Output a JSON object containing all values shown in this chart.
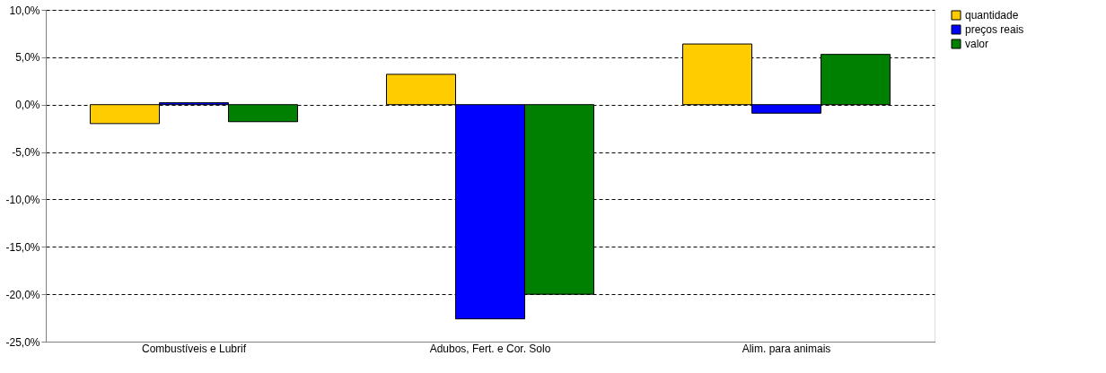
{
  "chart_data": {
    "type": "bar",
    "categories": [
      "Combustíveis e Lubrif",
      "Adubos, Fert. e Cor. Solo",
      "Alim. para animais"
    ],
    "series": [
      {
        "name": "quantidade",
        "color": "#ffcc00",
        "values": [
          -2.0,
          3.2,
          6.4
        ]
      },
      {
        "name": "preços reais",
        "color": "#0000ff",
        "values": [
          0.2,
          -22.6,
          -0.9
        ]
      },
      {
        "name": "valor",
        "color": "#008000",
        "values": [
          -1.8,
          -20.0,
          5.3
        ]
      }
    ],
    "ylim": [
      -25,
      10
    ],
    "yticks": [
      {
        "value": -25,
        "label": "-25,0%"
      },
      {
        "value": -20,
        "label": "-20,0%"
      },
      {
        "value": -15,
        "label": "-15,0%"
      },
      {
        "value": -10,
        "label": "-10,0%"
      },
      {
        "value": -5,
        "label": "-5,0%"
      },
      {
        "value": 0,
        "label": "0,0%"
      },
      {
        "value": 5,
        "label": "5,0%"
      },
      {
        "value": 10,
        "label": "10,0%"
      }
    ],
    "grid": "y",
    "legend": "right"
  }
}
